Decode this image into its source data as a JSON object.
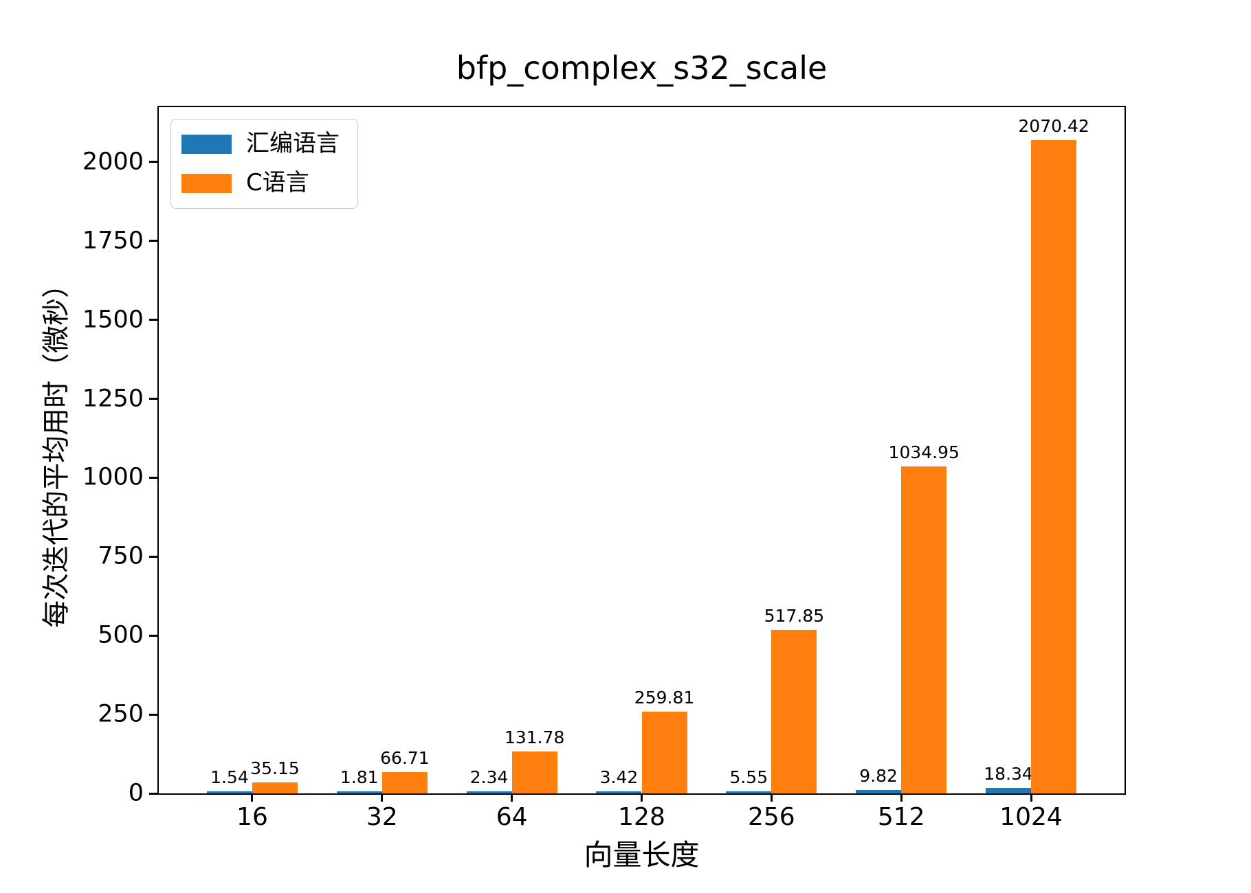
{
  "figure": {
    "background": "#ffffff"
  },
  "chart_data": {
    "type": "bar",
    "title": "bfp_complex_s32_scale",
    "xlabel": "向量长度",
    "ylabel": "每次迭代的平均用时（微秒）",
    "categories": [
      "16",
      "32",
      "64",
      "128",
      "256",
      "512",
      "1024"
    ],
    "series": [
      {
        "name": "汇编语言",
        "color": "#1f77b4",
        "values": [
          1.54,
          1.81,
          2.34,
          3.42,
          5.55,
          9.82,
          18.34
        ]
      },
      {
        "name": "C语言",
        "color": "#ff7f0e",
        "values": [
          35.15,
          66.71,
          131.78,
          259.81,
          517.85,
          1034.95,
          2070.42
        ]
      }
    ],
    "value_label_decimals": 2,
    "ylim": [
      0,
      2174
    ],
    "yticks": [
      0,
      250,
      500,
      750,
      1000,
      1250,
      1500,
      1750,
      2000
    ],
    "xlim_units": [
      -0.72,
      6.72
    ],
    "bar_width_units": 0.35,
    "grid": false,
    "legend_position": "upper left",
    "axis_color": "#000000"
  }
}
